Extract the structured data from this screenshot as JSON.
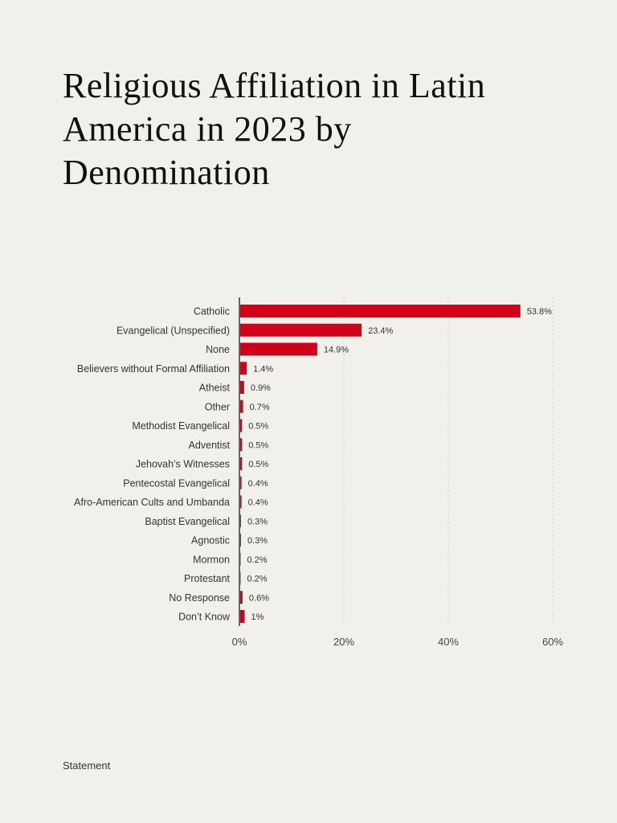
{
  "title": "Religious Affiliation in Latin America in 2023 by Denomination",
  "footer": "Statement",
  "colors": {
    "bar": "#d0021b",
    "background": "#f2f0eb",
    "axis": "#666666",
    "grid": "#cccccc"
  },
  "chart_data": {
    "type": "bar",
    "orientation": "horizontal",
    "title": "Religious Affiliation in Latin America in 2023 by Denomination",
    "categories": [
      "Catholic",
      "Evangelical (Unspecified)",
      "None",
      "Believers without Formal Affiliation",
      "Atheist",
      "Other",
      "Methodist Evangelical",
      "Adventist",
      "Jehovah’s Witnesses",
      "Pentecostal Evangelical",
      "Afro-American Cults and Umbanda",
      "Baptist Evangelical",
      "Agnostic",
      "Mormon",
      "Protestant",
      "No Response",
      "Don’t Know"
    ],
    "values": [
      53.8,
      23.4,
      14.9,
      1.4,
      0.9,
      0.7,
      0.5,
      0.5,
      0.5,
      0.4,
      0.4,
      0.3,
      0.3,
      0.2,
      0.2,
      0.6,
      1
    ],
    "data_labels": [
      "53.8%",
      "23.4%",
      "14.9%",
      "1.4%",
      "0.9%",
      "0.7%",
      "0.5%",
      "0.5%",
      "0.5%",
      "0.4%",
      "0.4%",
      "0.3%",
      "0.3%",
      "0.2%",
      "0.2%",
      "0.6%",
      "1%"
    ],
    "xlim": [
      0,
      60
    ],
    "xticks": [
      0,
      20,
      40,
      60
    ],
    "xtick_labels": [
      "0%",
      "20%",
      "40%",
      "60%"
    ],
    "grid": "vertical dotted",
    "xlabel": "",
    "ylabel": ""
  }
}
